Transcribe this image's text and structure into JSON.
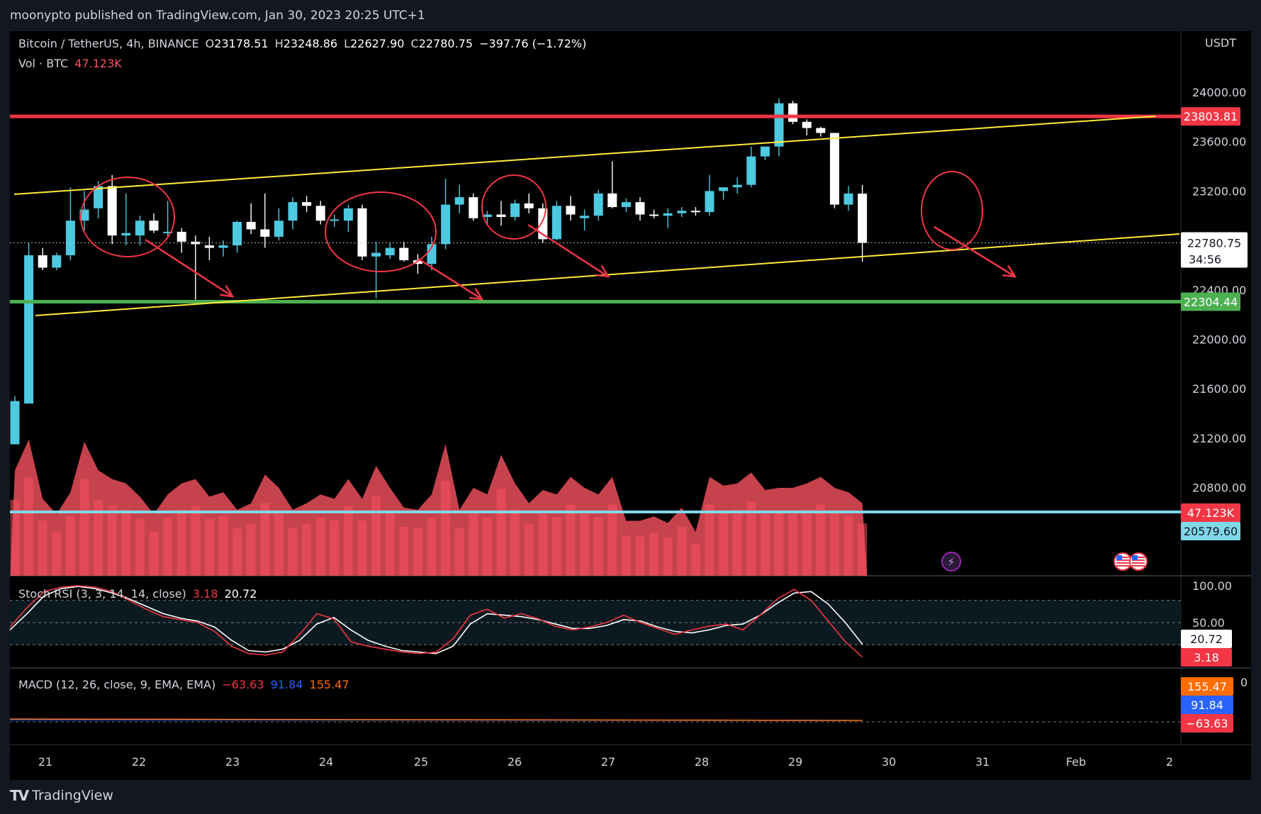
{
  "header": {
    "published_by": "moonypto published on TradingView.com, Jan 30, 2023 20:25 UTC+1"
  },
  "symbol_legend": {
    "symbol": "Bitcoin / TetherUS, 4h, BINANCE",
    "open_label": "O",
    "open": "23178.51",
    "high_label": "H",
    "high": "23248.86",
    "low_label": "L",
    "low": "22627.90",
    "close_label": "C",
    "close": "22780.75",
    "change": "−397.76 (−1.72%)"
  },
  "volume_legend": {
    "label": "Vol · BTC",
    "value": "47.123K"
  },
  "stoch_legend": {
    "label": "Stoch RSI (3, 3, 14, 14, close)",
    "k": "3.18",
    "d": "20.72"
  },
  "macd_legend": {
    "label": "MACD (12, 26, close, 9, EMA, EMA)",
    "macd": "−63.63",
    "signal": "91.84",
    "hist": "155.47"
  },
  "price_axis": {
    "currency": "USDT",
    "ticks": [
      "24000.00",
      "23600.00",
      "23200.00",
      "22400.00",
      "22000.00",
      "21600.00",
      "21200.00",
      "20800.00"
    ],
    "tick_values": [
      24000,
      23600,
      23200,
      22400,
      22000,
      21600,
      21200,
      20800
    ],
    "resistance_label": "23803.81",
    "resistance_value": 23803.81,
    "support_label": "22304.44",
    "support_value": 22304.44,
    "last_price_label": "22780.75",
    "last_price_value": 22780.75,
    "countdown": "34:56",
    "volume_label": "47.123K",
    "volume_ma_label": "20579.60"
  },
  "stoch_axis": {
    "ticks": [
      "100.00",
      "50.00"
    ],
    "d_label": "20.72",
    "k_label": "3.18"
  },
  "macd_axis": {
    "top_tick": "0",
    "hist_label": "155.47",
    "signal_label": "91.84",
    "macd_label": "−63.63"
  },
  "time_axis": {
    "labels": [
      "21",
      "22",
      "23",
      "24",
      "25",
      "26",
      "27",
      "28",
      "29",
      "30",
      "31",
      "Feb",
      "2"
    ]
  },
  "branding": {
    "logo_text": "TradingView"
  },
  "colors": {
    "background": "#131722",
    "bull": "#4dc9e0",
    "bear": "#ffffff",
    "resistance": "#f23645",
    "support": "#4caf50",
    "channel": "#ffeb3b",
    "annotation": "#f23645",
    "volume": "#f7525f",
    "volume_ma": "#7fd8e8",
    "stoch_k": "#f23645",
    "stoch_d": "#ffffff",
    "macd_signal_color": "#2962ff",
    "macd_hist_color": "#ff6d00"
  },
  "chart_data": {
    "type": "candlestick",
    "title": "Bitcoin / TetherUS, 4h, BINANCE",
    "ylabel": "USDT",
    "ylim": [
      20800,
      24200
    ],
    "x_ticks": [
      "21",
      "22",
      "23",
      "24",
      "25",
      "26",
      "27",
      "28",
      "29",
      "30",
      "31",
      "Feb",
      "2"
    ],
    "candles": [
      {
        "o": 21150,
        "h": 21540,
        "l": 21150,
        "c": 21500
      },
      {
        "o": 21480,
        "h": 22780,
        "l": 21480,
        "c": 22680
      },
      {
        "o": 22680,
        "h": 22740,
        "l": 22560,
        "c": 22580
      },
      {
        "o": 22580,
        "h": 22700,
        "l": 22560,
        "c": 22680
      },
      {
        "o": 22680,
        "h": 23230,
        "l": 22640,
        "c": 22960
      },
      {
        "o": 22960,
        "h": 23200,
        "l": 22880,
        "c": 23050
      },
      {
        "o": 23060,
        "h": 23280,
        "l": 22980,
        "c": 23240
      },
      {
        "o": 23240,
        "h": 23330,
        "l": 22770,
        "c": 22840
      },
      {
        "o": 22840,
        "h": 23180,
        "l": 22760,
        "c": 22860
      },
      {
        "o": 22840,
        "h": 23000,
        "l": 22760,
        "c": 22960
      },
      {
        "o": 22960,
        "h": 23020,
        "l": 22860,
        "c": 22880
      },
      {
        "o": 22860,
        "h": 23120,
        "l": 22830,
        "c": 22870
      },
      {
        "o": 22870,
        "h": 22900,
        "l": 22700,
        "c": 22790
      },
      {
        "o": 22790,
        "h": 22840,
        "l": 22320,
        "c": 22770
      },
      {
        "o": 22760,
        "h": 22830,
        "l": 22640,
        "c": 22740
      },
      {
        "o": 22740,
        "h": 22800,
        "l": 22670,
        "c": 22760
      },
      {
        "o": 22760,
        "h": 22960,
        "l": 22700,
        "c": 22950
      },
      {
        "o": 22950,
        "h": 23100,
        "l": 22850,
        "c": 22890
      },
      {
        "o": 22890,
        "h": 23180,
        "l": 22740,
        "c": 22830
      },
      {
        "o": 22830,
        "h": 23060,
        "l": 22800,
        "c": 22960
      },
      {
        "o": 22960,
        "h": 23150,
        "l": 22890,
        "c": 23110
      },
      {
        "o": 23110,
        "h": 23160,
        "l": 23030,
        "c": 23080
      },
      {
        "o": 23080,
        "h": 23120,
        "l": 22930,
        "c": 22960
      },
      {
        "o": 22960,
        "h": 23010,
        "l": 22910,
        "c": 22970
      },
      {
        "o": 22960,
        "h": 23090,
        "l": 22870,
        "c": 23060
      },
      {
        "o": 23060,
        "h": 23090,
        "l": 22640,
        "c": 22670
      },
      {
        "o": 22670,
        "h": 22790,
        "l": 22330,
        "c": 22700
      },
      {
        "o": 22680,
        "h": 22780,
        "l": 22650,
        "c": 22740
      },
      {
        "o": 22740,
        "h": 22790,
        "l": 22630,
        "c": 22640
      },
      {
        "o": 22640,
        "h": 22690,
        "l": 22530,
        "c": 22610
      },
      {
        "o": 22610,
        "h": 22830,
        "l": 22560,
        "c": 22770
      },
      {
        "o": 22770,
        "h": 23300,
        "l": 22730,
        "c": 23090
      },
      {
        "o": 23090,
        "h": 23250,
        "l": 23020,
        "c": 23150
      },
      {
        "o": 23150,
        "h": 23180,
        "l": 22960,
        "c": 22980
      },
      {
        "o": 22990,
        "h": 23040,
        "l": 22930,
        "c": 23010
      },
      {
        "o": 23010,
        "h": 23120,
        "l": 22920,
        "c": 22990
      },
      {
        "o": 22990,
        "h": 23130,
        "l": 22960,
        "c": 23100
      },
      {
        "o": 23100,
        "h": 23180,
        "l": 23020,
        "c": 23060
      },
      {
        "o": 23060,
        "h": 23100,
        "l": 22780,
        "c": 22810
      },
      {
        "o": 22810,
        "h": 23120,
        "l": 22800,
        "c": 23080
      },
      {
        "o": 23080,
        "h": 23160,
        "l": 22960,
        "c": 23010
      },
      {
        "o": 22980,
        "h": 23050,
        "l": 22880,
        "c": 23000
      },
      {
        "o": 23000,
        "h": 23210,
        "l": 22960,
        "c": 23180
      },
      {
        "o": 23180,
        "h": 23440,
        "l": 23060,
        "c": 23070
      },
      {
        "o": 23070,
        "h": 23140,
        "l": 23030,
        "c": 23110
      },
      {
        "o": 23110,
        "h": 23150,
        "l": 22960,
        "c": 23010
      },
      {
        "o": 23010,
        "h": 23050,
        "l": 22980,
        "c": 23000
      },
      {
        "o": 23000,
        "h": 23060,
        "l": 22900,
        "c": 23020
      },
      {
        "o": 23020,
        "h": 23070,
        "l": 22990,
        "c": 23040
      },
      {
        "o": 23040,
        "h": 23070,
        "l": 23000,
        "c": 23030
      },
      {
        "o": 23030,
        "h": 23330,
        "l": 23000,
        "c": 23200
      },
      {
        "o": 23200,
        "h": 23230,
        "l": 23130,
        "c": 23230
      },
      {
        "o": 23230,
        "h": 23310,
        "l": 23180,
        "c": 23250
      },
      {
        "o": 23250,
        "h": 23560,
        "l": 23230,
        "c": 23480
      },
      {
        "o": 23480,
        "h": 23560,
        "l": 23450,
        "c": 23560
      },
      {
        "o": 23560,
        "h": 23950,
        "l": 23480,
        "c": 23910
      },
      {
        "o": 23910,
        "h": 23930,
        "l": 23740,
        "c": 23760
      },
      {
        "o": 23760,
        "h": 23780,
        "l": 23650,
        "c": 23710
      },
      {
        "o": 23710,
        "h": 23720,
        "l": 23640,
        "c": 23670
      },
      {
        "o": 23670,
        "h": 23670,
        "l": 23060,
        "c": 23090
      },
      {
        "o": 23090,
        "h": 23240,
        "l": 23040,
        "c": 23180
      },
      {
        "o": 23178.51,
        "h": 23248.86,
        "l": 22627.9,
        "c": 22780.75
      }
    ],
    "volume": [
      48,
      62,
      35,
      28,
      38,
      61,
      48,
      44,
      42,
      36,
      28,
      37,
      42,
      44,
      36,
      38,
      30,
      33,
      46,
      40,
      30,
      33,
      37,
      35,
      44,
      35,
      50,
      40,
      31,
      30,
      37,
      60,
      30,
      40,
      37,
      55,
      42,
      33,
      39,
      37,
      45,
      40,
      37,
      45,
      25,
      25,
      27,
      24,
      31,
      20,
      45,
      41,
      42,
      47,
      39,
      40,
      40,
      42,
      45,
      40,
      38,
      33
    ],
    "volume_ma": 20579.6,
    "stoch_rsi": {
      "k": [
        44,
        70,
        92,
        98,
        100,
        98,
        92,
        80,
        68,
        58,
        54,
        50,
        38,
        18,
        8,
        6,
        10,
        34,
        62,
        55,
        24,
        18,
        14,
        10,
        8,
        10,
        28,
        60,
        68,
        56,
        62,
        55,
        45,
        40,
        44,
        50,
        60,
        50,
        42,
        34,
        40,
        45,
        48,
        40,
        60,
        82,
        95,
        80,
        52,
        24,
        3.18
      ],
      "d": [
        40,
        62,
        86,
        96,
        99,
        96,
        90,
        82,
        72,
        62,
        56,
        52,
        44,
        26,
        12,
        10,
        14,
        26,
        48,
        57,
        40,
        26,
        18,
        12,
        10,
        8,
        18,
        48,
        62,
        60,
        58,
        54,
        48,
        42,
        42,
        46,
        54,
        52,
        44,
        38,
        36,
        40,
        46,
        48,
        60,
        76,
        90,
        92,
        75,
        50,
        20.72
      ]
    },
    "macd": {
      "macd": -63.63,
      "signal": 91.84,
      "histogram": 155.47
    }
  }
}
